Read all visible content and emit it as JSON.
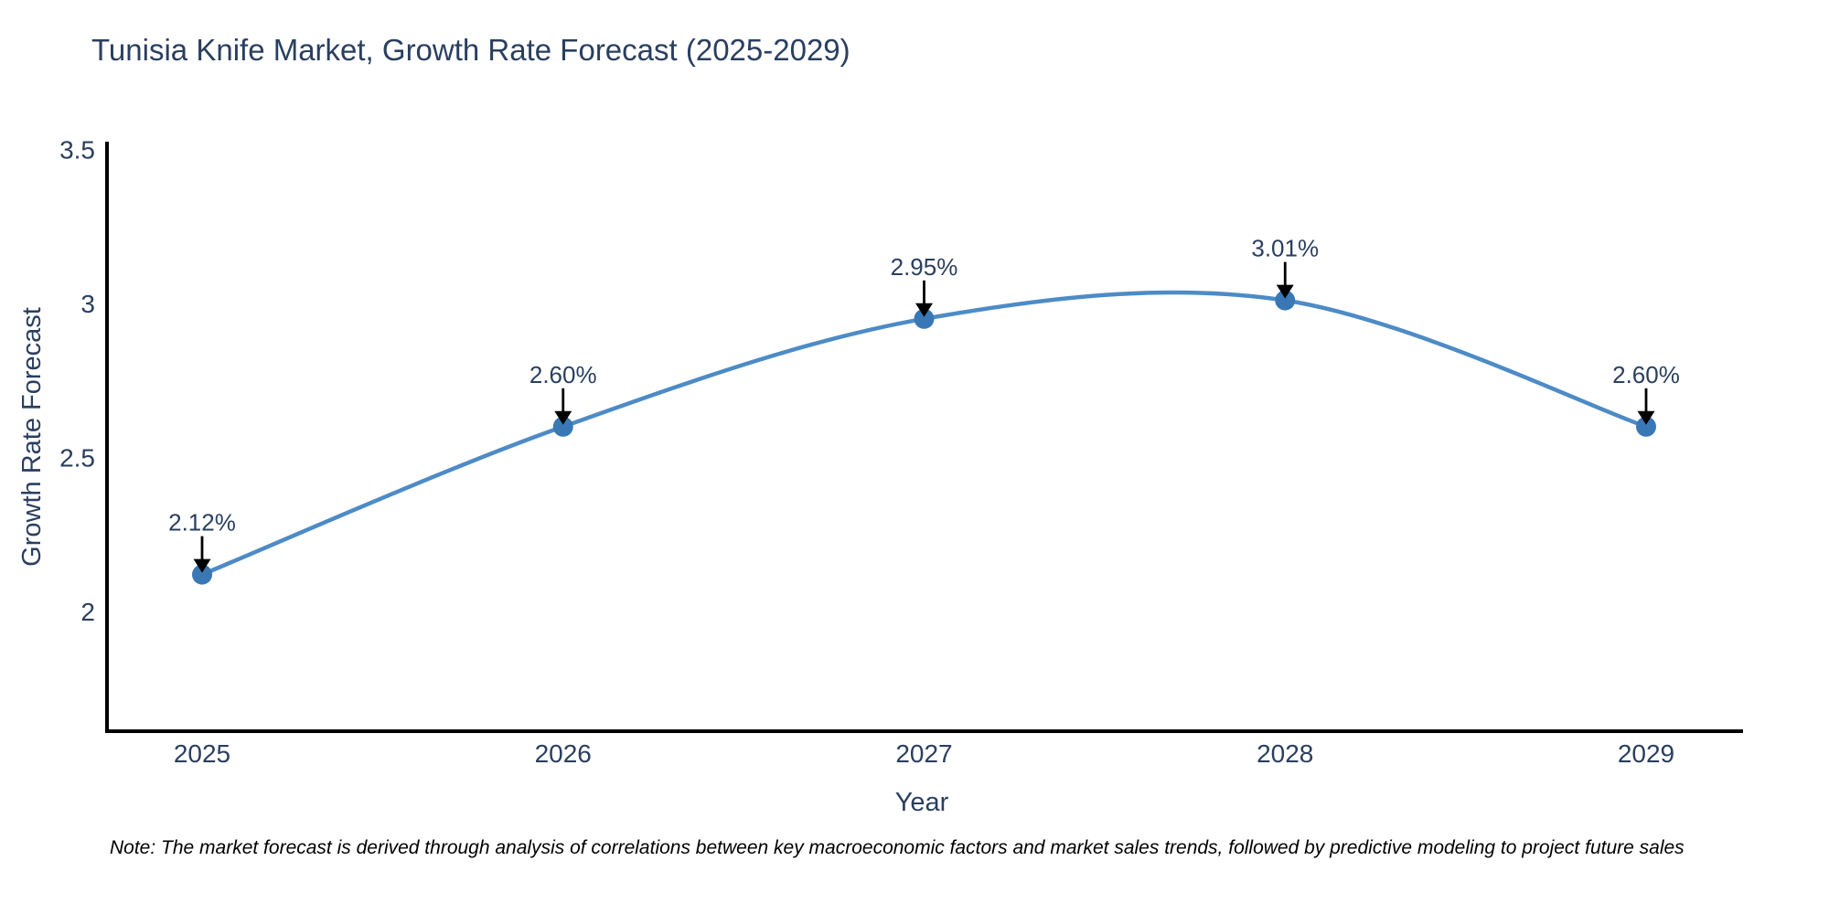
{
  "chart_data": {
    "type": "line",
    "title": "Tunisia Knife Market, Growth Rate Forecast (2025-2029)",
    "xlabel": "Year",
    "ylabel": "Growth Rate Forecast",
    "categories": [
      "2025",
      "2026",
      "2027",
      "2028",
      "2029"
    ],
    "values": [
      2.12,
      2.6,
      2.95,
      3.01,
      2.6
    ],
    "point_labels": [
      "2.12%",
      "2.60%",
      "2.95%",
      "3.01%",
      "2.60%"
    ],
    "ytick_labels": [
      "3.5",
      "3",
      "2.5",
      "2"
    ],
    "ytick_values": [
      3.5,
      3.0,
      2.5,
      2.0
    ],
    "ylim": [
      1.6,
      3.51
    ],
    "line_shape": "spline",
    "grid": false,
    "legend_position": "none",
    "colors": {
      "line": "#4d8bc6",
      "marker": "#3a78b5",
      "axis": "#000000",
      "text": "#2a3f5f",
      "annotation_arrow": "#000000"
    }
  },
  "note": "Note: The market forecast is derived through analysis of correlations between key macroeconomic factors and market sales trends, followed by predictive modeling to project future sales"
}
